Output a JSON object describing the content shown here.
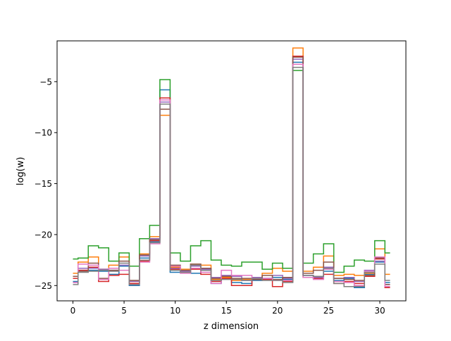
{
  "chart_data": {
    "type": "line",
    "drawstyle": "steps-mid",
    "title": "",
    "xlabel": "z dimension",
    "ylabel": "log(w)",
    "xlim": [
      -1.55,
      32.55
    ],
    "ylim": [
      -26.5,
      -1.0
    ],
    "xticks": [
      0,
      5,
      10,
      15,
      20,
      25,
      30
    ],
    "yticks": [
      -25,
      -20,
      -15,
      -10,
      -5
    ],
    "ytick_labels": [
      "−25",
      "−20",
      "−15",
      "−10",
      "−5"
    ],
    "grid": false,
    "legend": null,
    "x": [
      0,
      1,
      2,
      3,
      4,
      5,
      6,
      7,
      8,
      9,
      10,
      11,
      12,
      13,
      14,
      15,
      16,
      17,
      18,
      19,
      20,
      21,
      22,
      23,
      24,
      25,
      26,
      27,
      28,
      29,
      30,
      31
    ],
    "series": [
      {
        "color": "#1f77b4",
        "values": [
          -24.6,
          -23.5,
          -23.5,
          -23.6,
          -23.9,
          -23.1,
          -25.0,
          -22.3,
          -20.7,
          -5.8,
          -23.7,
          -23.6,
          -23.8,
          -23.5,
          -24.8,
          -24.3,
          -24.7,
          -24.8,
          -24.5,
          -24.3,
          -24.2,
          -24.4,
          -3.1,
          -24.0,
          -24.3,
          -23.6,
          -24.5,
          -24.3,
          -25.2,
          -23.9,
          -22.7,
          -24.7
        ]
      },
      {
        "color": "#ff7f0e",
        "values": [
          -23.8,
          -22.7,
          -22.2,
          -23.4,
          -23.0,
          -22.2,
          -24.6,
          -21.9,
          -20.2,
          -8.3,
          -23.2,
          -23.4,
          -22.9,
          -23.0,
          -24.4,
          -24.2,
          -24.5,
          -24.4,
          -24.4,
          -23.8,
          -23.3,
          -23.6,
          -1.7,
          -23.6,
          -23.2,
          -22.1,
          -24.0,
          -23.9,
          -24.0,
          -23.8,
          -21.4,
          -23.9
        ]
      },
      {
        "color": "#2ca02c",
        "values": [
          -22.4,
          -22.3,
          -21.1,
          -21.3,
          -22.6,
          -21.8,
          -23.1,
          -20.4,
          -19.1,
          -4.8,
          -21.8,
          -22.6,
          -21.1,
          -20.6,
          -22.5,
          -23.0,
          -23.1,
          -22.7,
          -22.7,
          -23.4,
          -22.8,
          -23.3,
          -3.9,
          -22.8,
          -21.9,
          -20.9,
          -23.7,
          -23.1,
          -22.5,
          -22.6,
          -20.6,
          -21.8
        ]
      },
      {
        "color": "#d62728",
        "values": [
          -24.3,
          -23.5,
          -23.2,
          -24.6,
          -24.0,
          -23.9,
          -24.8,
          -22.6,
          -20.6,
          -6.6,
          -23.4,
          -23.7,
          -23.4,
          -23.9,
          -24.6,
          -24.3,
          -25.0,
          -25.0,
          -24.4,
          -24.4,
          -25.1,
          -24.6,
          -2.5,
          -24.2,
          -24.3,
          -23.9,
          -24.8,
          -24.6,
          -24.8,
          -24.1,
          -22.4,
          -25.2
        ]
      },
      {
        "color": "#9467bd",
        "values": [
          -24.7,
          -23.3,
          -23.3,
          -23.4,
          -23.5,
          -23.0,
          -24.6,
          -22.1,
          -20.4,
          -7.0,
          -23.3,
          -23.6,
          -23.1,
          -23.4,
          -24.2,
          -24.0,
          -24.1,
          -24.5,
          -24.2,
          -24.3,
          -24.0,
          -24.3,
          -2.8,
          -24.0,
          -24.2,
          -23.2,
          -24.3,
          -24.2,
          -24.6,
          -23.5,
          -22.6,
          -24.9
        ]
      },
      {
        "color": "#8c564b",
        "values": [
          -24.1,
          -23.6,
          -22.8,
          -24.3,
          -23.5,
          -22.6,
          -24.5,
          -22.0,
          -20.5,
          -7.7,
          -23.0,
          -23.5,
          -22.9,
          -23.3,
          -24.3,
          -24.1,
          -24.3,
          -24.3,
          -24.4,
          -24.0,
          -24.4,
          -24.2,
          -2.6,
          -23.8,
          -23.5,
          -22.7,
          -24.3,
          -24.4,
          -24.5,
          -24.0,
          -22.3,
          -24.9
        ]
      },
      {
        "color": "#e377c2",
        "values": [
          -24.7,
          -22.9,
          -23.0,
          -24.4,
          -23.3,
          -23.5,
          -24.9,
          -22.7,
          -20.9,
          -6.8,
          -23.1,
          -23.8,
          -23.3,
          -23.7,
          -24.8,
          -23.5,
          -24.0,
          -24.0,
          -24.3,
          -24.3,
          -24.5,
          -24.5,
          -3.3,
          -24.2,
          -24.4,
          -23.4,
          -24.6,
          -24.7,
          -25.0,
          -23.6,
          -22.2,
          -25.1
        ]
      },
      {
        "color": "#7f7f7f",
        "values": [
          -24.9,
          -23.7,
          -23.6,
          -23.5,
          -23.6,
          -22.8,
          -24.9,
          -22.5,
          -20.8,
          -7.2,
          -23.5,
          -23.7,
          -23.0,
          -23.5,
          -24.5,
          -24.4,
          -24.4,
          -24.5,
          -24.3,
          -24.5,
          -24.5,
          -24.7,
          -3.6,
          -24.0,
          -24.1,
          -23.3,
          -24.8,
          -25.1,
          -25.1,
          -23.7,
          -22.9,
          -24.5
        ]
      }
    ]
  }
}
